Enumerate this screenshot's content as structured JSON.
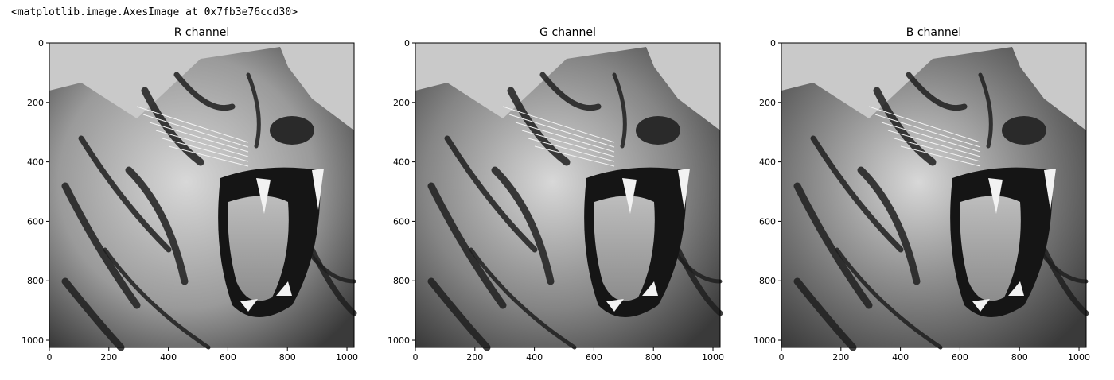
{
  "output_line": "<matplotlib.image.AxesImage at 0x7fb3e76ccd30>",
  "panels": [
    {
      "title": "R channel",
      "tone": "#9a9a9a"
    },
    {
      "title": "G channel",
      "tone": "#858585"
    },
    {
      "title": "B channel",
      "tone": "#7a7a7a"
    }
  ],
  "axes": {
    "x_ticks": [
      "0",
      "200",
      "400",
      "600",
      "800",
      "1000"
    ],
    "y_ticks": [
      "0",
      "200",
      "400",
      "600",
      "800",
      "1000"
    ],
    "x_range": [
      0,
      1024
    ],
    "y_range": [
      0,
      1024
    ]
  },
  "image": {
    "subject": "tiger-face-grayscale"
  }
}
